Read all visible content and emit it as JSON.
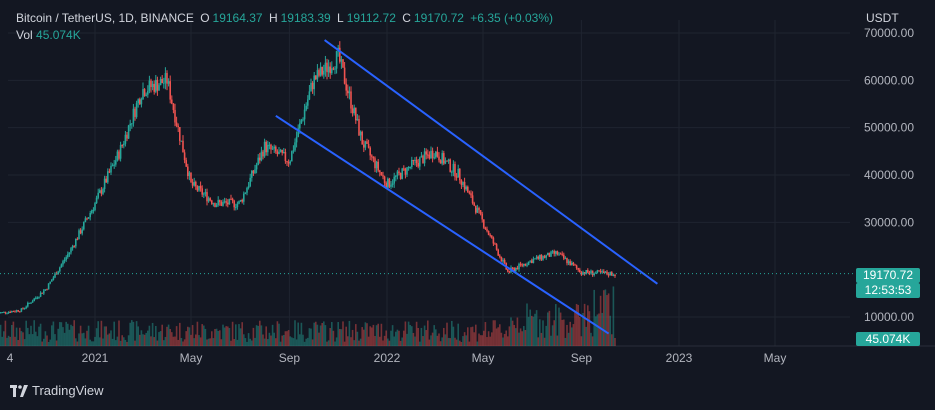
{
  "header": {
    "symbol": "Bitcoin / TetherUS, 1D, BINANCE",
    "o_label": "O",
    "o_value": "19164.37",
    "h_label": "H",
    "h_value": "19183.39",
    "l_label": "L",
    "l_value": "19112.72",
    "c_label": "C",
    "c_value": "19170.72",
    "change": "+6.35 (+0.03%)",
    "vol_label": "Vol",
    "vol_value": "45.074K"
  },
  "currency": "USDT",
  "last_price_tag": "19170.72",
  "countdown_tag": "12:53:53",
  "volume_tag": "45.074K",
  "footer_brand": "TradingView",
  "colors": {
    "up": "#26a69a",
    "down": "#ef5350",
    "channel": "#2962ff",
    "background": "#131722",
    "grid": "#1f2430"
  },
  "chart_data": {
    "type": "candlestick",
    "y_axis_ticks": [
      "70000.00",
      "60000.00",
      "50000.00",
      "40000.00",
      "30000.00",
      "10000.00"
    ],
    "y_axis_tick_values": [
      70000,
      60000,
      50000,
      40000,
      30000,
      10000
    ],
    "x_axis_ticks": [
      "4",
      "2021",
      "May",
      "Sep",
      "2022",
      "May",
      "Sep",
      "2023",
      "May"
    ],
    "x_axis_tick_dates": [
      "2020-09-01",
      "2021-01-01",
      "2021-05-01",
      "2021-09-01",
      "2022-01-01",
      "2022-05-01",
      "2022-09-01",
      "2023-01-01",
      "2023-05-01"
    ],
    "ylim": [
      8000,
      72000
    ],
    "last_price": 19170.72,
    "series": [
      {
        "date": [
          "2020-09-01",
          "2020-10-01",
          "2020-11-01",
          "2020-12-01",
          "2021-01-01",
          "2021-02-01",
          "2021-03-01",
          "2021-04-01",
          "2021-05-01",
          "2021-06-01",
          "2021-07-01",
          "2021-08-01",
          "2021-09-01",
          "2021-10-01",
          "2021-11-01",
          "2021-12-01",
          "2022-01-01",
          "2022-02-01",
          "2022-03-01",
          "2022-04-01",
          "2022-05-01",
          "2022-06-01",
          "2022-07-01",
          "2022-08-01",
          "2022-09-01",
          "2022-10-01"
        ],
        "close": [
          10800,
          11500,
          16000,
          24000,
          34000,
          45000,
          58000,
          60000,
          38000,
          34000,
          34000,
          46000,
          43000,
          60000,
          65000,
          47000,
          38000,
          42000,
          45000,
          40000,
          30000,
          19500,
          22000,
          23500,
          19500,
          19170
        ]
      }
    ],
    "channel_lines": [
      {
        "from": [
          "2021-10-15",
          68500
        ],
        "to": [
          "2022-12-05",
          17000
        ]
      },
      {
        "from": [
          "2021-08-15",
          52500
        ],
        "to": [
          "2022-10-05",
          6500
        ]
      }
    ],
    "volume_visible": true
  }
}
